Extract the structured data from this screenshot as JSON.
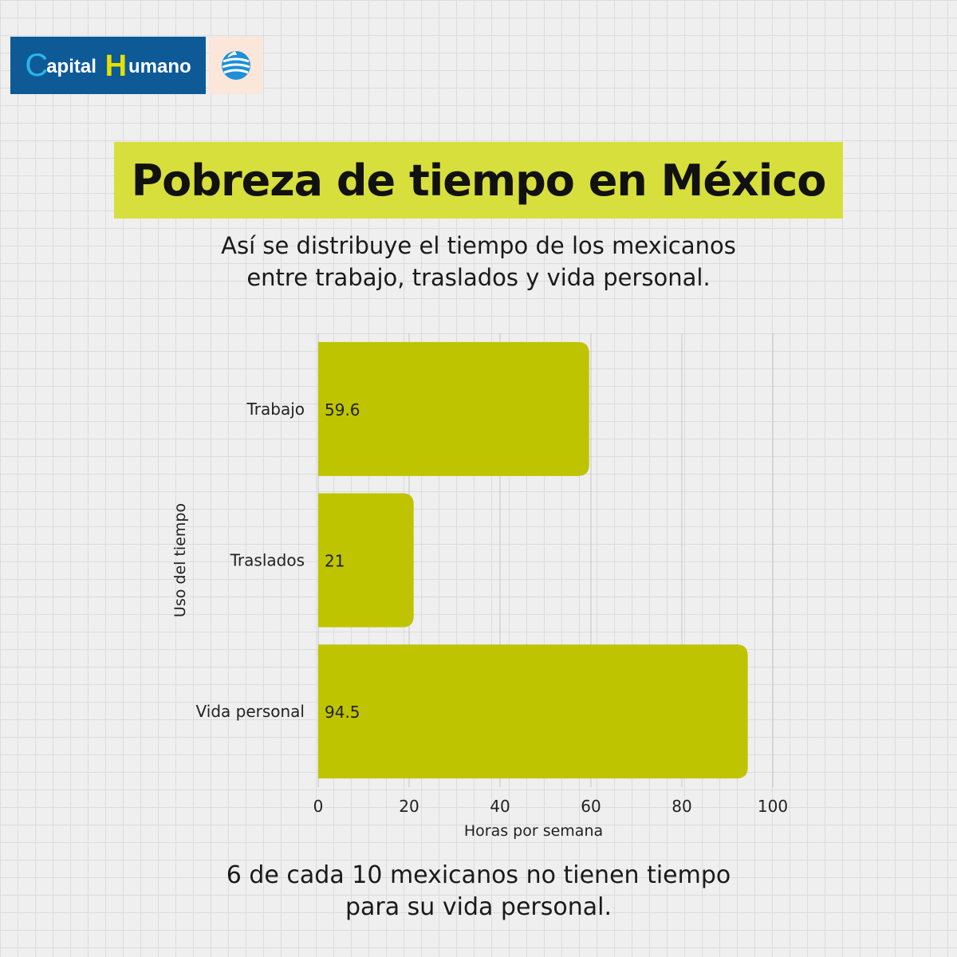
{
  "brand": {
    "name_prefix": "C",
    "name_rest1": "apital ",
    "name_h": "H",
    "name_rest2": "umano",
    "seal_icon": "globe-seal-icon",
    "colors": {
      "brand_blue": "#0d5a97",
      "accent_cyan": "#29b6e8",
      "accent_yellow": "#e4e000"
    }
  },
  "header": {
    "title": "Pobreza de tiempo en México",
    "subtitle_line1": "Así se distribuye el tiempo de los mexicanos",
    "subtitle_line2": "entre trabajo, traslados y vida personal."
  },
  "footer": {
    "line1": "6 de cada 10 mexicanos no tienen tiempo",
    "line2": "para su vida personal."
  },
  "chart_data": {
    "type": "bar",
    "orientation": "horizontal",
    "categories": [
      "Trabajo",
      "Traslados",
      "Vida personal"
    ],
    "values": [
      59.6,
      21,
      94.5
    ],
    "data_labels": [
      "59.6",
      "21",
      "94.5"
    ],
    "xlabel": "Horas por semana",
    "ylabel": "Uso del tiempo",
    "xlim": [
      0,
      100
    ],
    "xticks": [
      0,
      20,
      40,
      60,
      80,
      100
    ],
    "grid": "vertical",
    "bar_color": "#bfc400",
    "title_bg_color": "#d7df3c"
  }
}
